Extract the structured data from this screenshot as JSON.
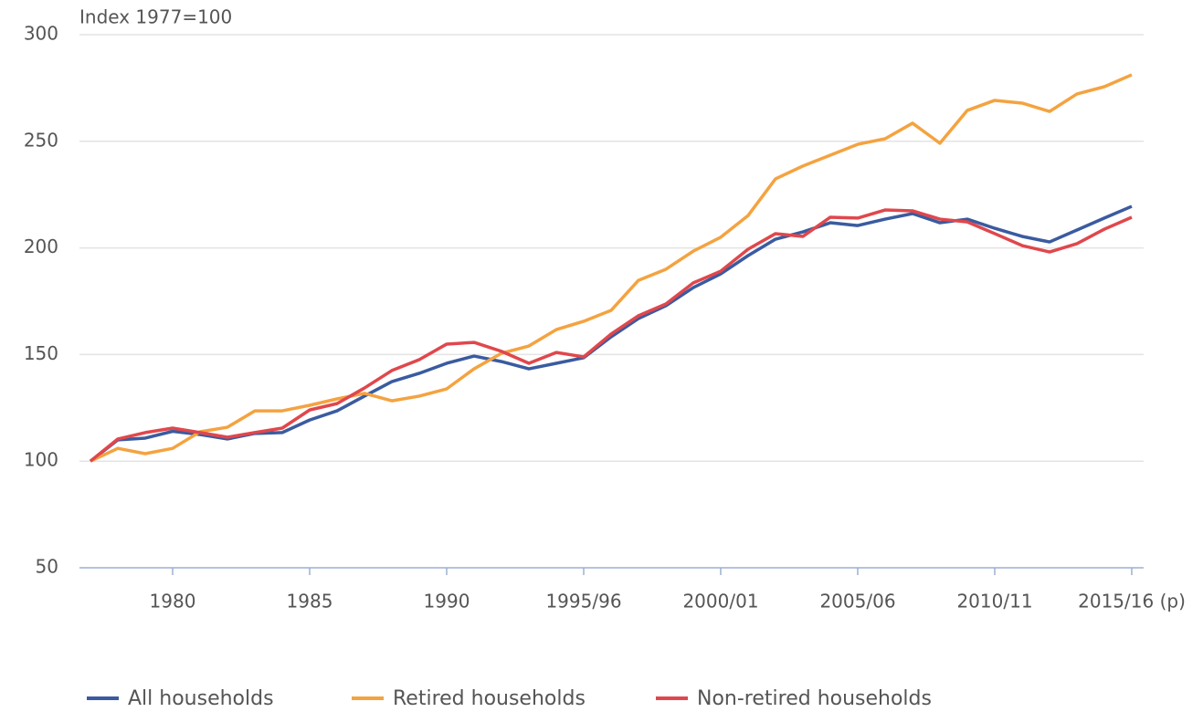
{
  "chart_data": {
    "type": "line",
    "ylabel": "Index 1977=100",
    "categories": [
      null,
      null,
      null,
      "1980",
      null,
      null,
      null,
      null,
      "1985",
      null,
      null,
      null,
      null,
      "1990",
      null,
      null,
      null,
      null,
      "1995/96",
      null,
      null,
      null,
      null,
      "2000/01",
      null,
      null,
      null,
      null,
      "2005/06",
      null,
      null,
      null,
      null,
      "2010/11",
      null,
      null,
      null,
      null,
      "2015/16 (p)"
    ],
    "series": [
      {
        "name": "All households",
        "color": "#3a5ba0",
        "values": [
          100,
          110,
          110.8,
          114,
          112.5,
          110.4,
          113,
          113.4,
          119.3,
          123.6,
          130.5,
          137.3,
          141.2,
          145.9,
          149.3,
          146.7,
          143.3,
          145.9,
          148.5,
          158.3,
          166.9,
          172.9,
          181.4,
          187.8,
          196.4,
          204.1,
          207.5,
          211.8,
          210.5,
          213.5,
          216.1,
          211.8,
          213.5,
          209.2,
          205.4,
          202.8,
          208.4,
          214,
          219.5
        ]
      },
      {
        "name": "Retired households",
        "color": "#f4a340",
        "values": [
          100,
          106,
          103.5,
          106,
          113.8,
          115.9,
          123.6,
          123.6,
          126.2,
          129.2,
          131.8,
          128.3,
          130.5,
          133.9,
          143.3,
          150.6,
          154,
          161.7,
          165.6,
          170.7,
          184.8,
          190,
          198.5,
          205,
          215.2,
          232.4,
          238.4,
          243.5,
          248.6,
          251.2,
          258.5,
          249.1,
          264.5,
          269.2,
          267.9,
          264,
          272.2,
          275.6,
          281.2
        ]
      },
      {
        "name": "Non-retired households",
        "color": "#e0474c",
        "values": [
          100,
          110.4,
          113.4,
          115.5,
          113.4,
          111.2,
          113.4,
          115.5,
          124,
          127,
          134.3,
          142.5,
          147.6,
          154.9,
          155.7,
          151.5,
          145.9,
          151,
          148.9,
          159.6,
          168.2,
          173.7,
          183.6,
          189.1,
          199.4,
          206.7,
          205.4,
          214.4,
          214,
          217.8,
          217.4,
          213.5,
          212.2,
          206.7,
          201.1,
          198.1,
          202,
          208.8,
          214.4
        ]
      }
    ],
    "ylim": [
      50,
      300
    ],
    "yticks": [
      50,
      100,
      150,
      200,
      250,
      300
    ],
    "grid": true,
    "legend": "bottom"
  }
}
